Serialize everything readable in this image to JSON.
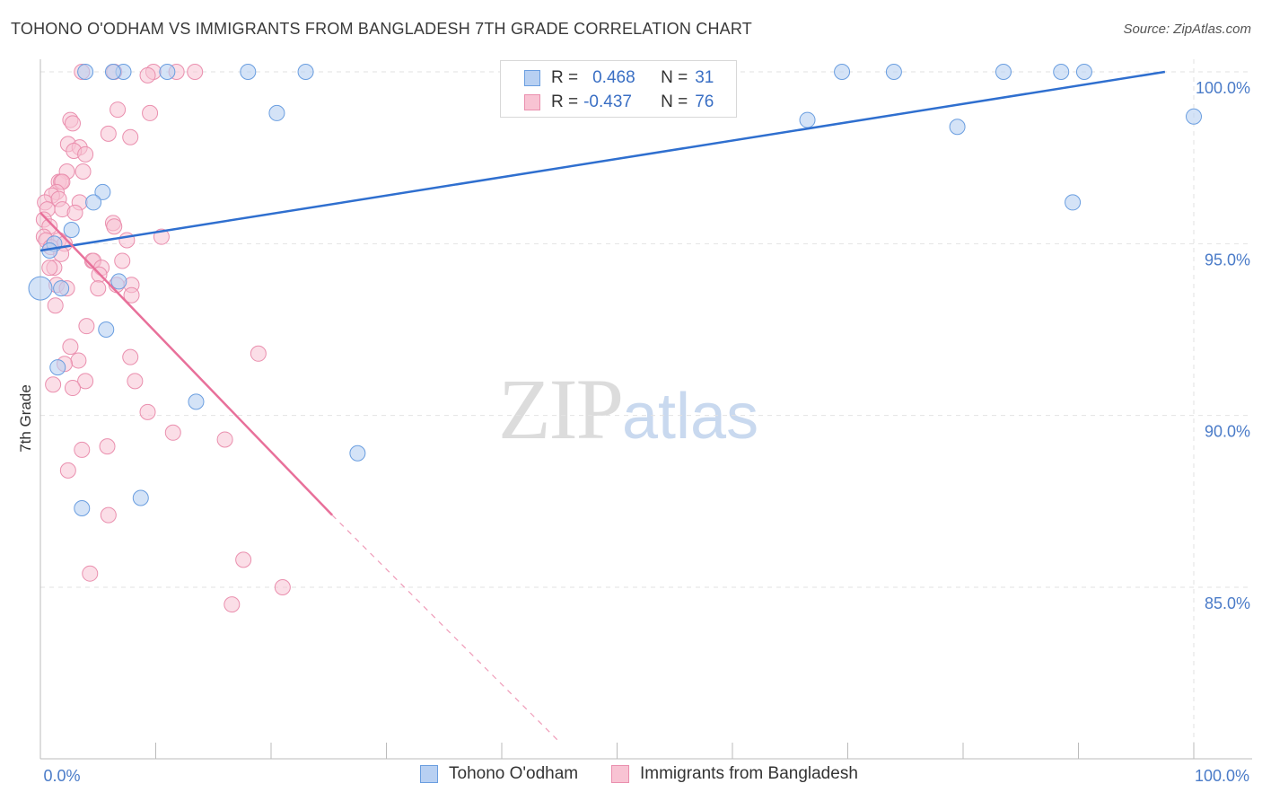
{
  "header": {
    "title": "TOHONO O'ODHAM VS IMMIGRANTS FROM BANGLADESH 7TH GRADE CORRELATION CHART",
    "source": "Source: ZipAtlas.com"
  },
  "watermark": {
    "part1": "ZIP",
    "part2": "atlas"
  },
  "legend": {
    "rows": [
      {
        "r_label": "R =",
        "r_value": "0.468",
        "n_label": "N =",
        "n_value": "31"
      },
      {
        "r_label": "R =",
        "r_value": "-0.437",
        "n_label": "N =",
        "n_value": "76"
      }
    ]
  },
  "colors": {
    "blue_fill": "#b8d0f2",
    "blue_stroke": "#6a9ee0",
    "blue_line": "#2f6fcf",
    "pink_fill": "#f8c3d3",
    "pink_stroke": "#ea8fae",
    "pink_line": "#e8709a",
    "grid": "#e2e2e2",
    "tick_text": "#4a7bc8"
  },
  "chart_data": {
    "type": "scatter",
    "title": "TOHONO O'ODHAM VS IMMIGRANTS FROM BANGLADESH 7TH GRADE CORRELATION CHART",
    "xlabel": "",
    "ylabel": "7th Grade",
    "xlim": [
      0,
      100
    ],
    "ylim": [
      80.5,
      100.8
    ],
    "y_ticks": [
      {
        "value": 100,
        "label": "100.0%"
      },
      {
        "value": 95,
        "label": "95.0%"
      },
      {
        "value": 90,
        "label": "90.0%"
      },
      {
        "value": 85,
        "label": "85.0%"
      }
    ],
    "x_ticks": [
      {
        "value": 0,
        "label": "0.0%"
      },
      {
        "value": 100,
        "label": "100.0%"
      }
    ],
    "grid": true,
    "legend_position": "top-center",
    "series": [
      {
        "name": "Tohono O'odham",
        "color": "#b8d0f2",
        "points": [
          [
            3.9,
            100
          ],
          [
            7.2,
            100
          ],
          [
            6.3,
            100
          ],
          [
            11,
            100
          ],
          [
            18,
            100
          ],
          [
            23,
            100
          ],
          [
            69.5,
            100
          ],
          [
            74,
            100
          ],
          [
            83.5,
            100
          ],
          [
            88.5,
            100
          ],
          [
            90.5,
            100
          ],
          [
            47,
            100
          ],
          [
            20.5,
            98.8
          ],
          [
            66.5,
            98.6
          ],
          [
            79.5,
            98.4
          ],
          [
            100,
            98.7
          ],
          [
            5.4,
            96.5
          ],
          [
            4.6,
            96.2
          ],
          [
            89.5,
            96.2
          ],
          [
            2.7,
            95.4
          ],
          [
            1.2,
            95.0
          ],
          [
            0.8,
            94.8
          ],
          [
            0,
            93.7
          ],
          [
            1.8,
            93.7
          ],
          [
            6.8,
            93.9
          ],
          [
            5.7,
            92.5
          ],
          [
            1.5,
            91.4
          ],
          [
            13.5,
            90.4
          ],
          [
            27.5,
            88.9
          ],
          [
            8.7,
            87.6
          ],
          [
            3.6,
            87.3
          ]
        ]
      },
      {
        "name": "Immigrants from Bangladesh",
        "color": "#f8c3d3",
        "points": [
          [
            3.6,
            100
          ],
          [
            6.4,
            100
          ],
          [
            9.8,
            100
          ],
          [
            9.3,
            99.9
          ],
          [
            11.8,
            100
          ],
          [
            6.7,
            98.9
          ],
          [
            9.5,
            98.8
          ],
          [
            2.6,
            98.6
          ],
          [
            2.8,
            98.5
          ],
          [
            5.9,
            98.2
          ],
          [
            7.8,
            98.1
          ],
          [
            2.4,
            97.9
          ],
          [
            3.4,
            97.8
          ],
          [
            2.9,
            97.7
          ],
          [
            3.9,
            97.6
          ],
          [
            3.7,
            97.1
          ],
          [
            2.3,
            97.1
          ],
          [
            1.6,
            96.8
          ],
          [
            1.8,
            96.8
          ],
          [
            1.9,
            96.8
          ],
          [
            1.4,
            96.5
          ],
          [
            1.0,
            96.4
          ],
          [
            0.4,
            96.2
          ],
          [
            1.6,
            96.3
          ],
          [
            3.4,
            96.2
          ],
          [
            0.6,
            96.0
          ],
          [
            1.9,
            96.0
          ],
          [
            3.0,
            95.9
          ],
          [
            0.3,
            95.7
          ],
          [
            0.8,
            95.5
          ],
          [
            6.3,
            95.6
          ],
          [
            6.4,
            95.5
          ],
          [
            10.5,
            95.2
          ],
          [
            0.3,
            95.2
          ],
          [
            0.5,
            95.1
          ],
          [
            1.6,
            95.1
          ],
          [
            7.5,
            95.1
          ],
          [
            2.1,
            95.0
          ],
          [
            0.9,
            94.9
          ],
          [
            1.8,
            94.7
          ],
          [
            4.5,
            94.5
          ],
          [
            4.6,
            94.5
          ],
          [
            7.1,
            94.5
          ],
          [
            5.3,
            94.3
          ],
          [
            1.2,
            94.3
          ],
          [
            0.8,
            94.3
          ],
          [
            5.1,
            94.1
          ],
          [
            1.4,
            93.8
          ],
          [
            2.3,
            93.7
          ],
          [
            6.6,
            93.8
          ],
          [
            5.0,
            93.7
          ],
          [
            7.9,
            93.8
          ],
          [
            7.9,
            93.5
          ],
          [
            1.3,
            93.2
          ],
          [
            4.0,
            92.6
          ],
          [
            2.6,
            92.0
          ],
          [
            7.8,
            91.7
          ],
          [
            18.9,
            91.8
          ],
          [
            3.3,
            91.6
          ],
          [
            2.1,
            91.5
          ],
          [
            3.9,
            91.0
          ],
          [
            8.2,
            91.0
          ],
          [
            1.1,
            90.9
          ],
          [
            2.8,
            90.8
          ],
          [
            9.3,
            90.1
          ],
          [
            11.5,
            89.5
          ],
          [
            16.0,
            89.3
          ],
          [
            3.6,
            89.0
          ],
          [
            5.8,
            89.1
          ],
          [
            2.4,
            88.4
          ],
          [
            5.9,
            87.1
          ],
          [
            4.3,
            85.4
          ],
          [
            17.6,
            85.8
          ],
          [
            21.0,
            85.0
          ],
          [
            16.6,
            84.5
          ],
          [
            13.4,
            100
          ]
        ]
      }
    ],
    "trend_lines": [
      {
        "series": "Tohono O'odham",
        "x": [
          0,
          97.5
        ],
        "y": [
          94.8,
          100
        ]
      },
      {
        "series": "Immigrants from Bangladesh",
        "x": [
          0,
          25.3
        ],
        "y": [
          95.9,
          87.1
        ],
        "dashed_extension_to": [
          45,
          80.5
        ]
      }
    ]
  },
  "bottom_legend": {
    "items": [
      {
        "label": "Tohono O'odham"
      },
      {
        "label": "Immigrants from Bangladesh"
      }
    ]
  }
}
